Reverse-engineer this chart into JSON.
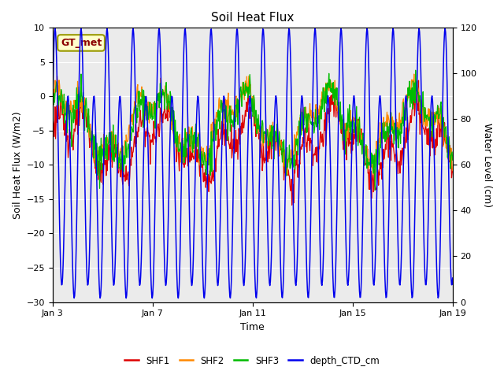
{
  "title": "Soil Heat Flux",
  "ylabel_left": "Soil Heat Flux (W/m2)",
  "ylabel_right": "Water Level (cm)",
  "xlabel": "Time",
  "ylim_left": [
    -30,
    10
  ],
  "ylim_right": [
    0,
    120
  ],
  "yticks_left": [
    -30,
    -25,
    -20,
    -15,
    -10,
    -5,
    0,
    5,
    10
  ],
  "yticks_right": [
    0,
    20,
    40,
    60,
    80,
    100,
    120
  ],
  "xtick_positions": [
    0,
    4,
    8,
    12,
    16
  ],
  "xtick_labels": [
    "Jan 3",
    "Jan 7",
    "Jan 11",
    "Jan 15",
    "Jan 19"
  ],
  "xlim": [
    0,
    16
  ],
  "annotation_text": "GT_met",
  "annotation_color": "#8B0000",
  "annotation_bg": "#FFFFCC",
  "annotation_edge": "#999900",
  "bg_color": "#EBEBEB",
  "fig_bg": "#FFFFFF",
  "colors": {
    "SHF1": "#DD0000",
    "SHF2": "#FF8800",
    "SHF3": "#00BB00",
    "depth_CTD_cm": "#0000EE"
  },
  "legend_labels": [
    "SHF1",
    "SHF2",
    "SHF3",
    "depth_CTD_cm"
  ],
  "n_points": 800,
  "seed": 123,
  "tidal_period": 0.52,
  "tidal_n": 26,
  "shf_period_slow": 3.5,
  "shf_period_fast": 1.1
}
